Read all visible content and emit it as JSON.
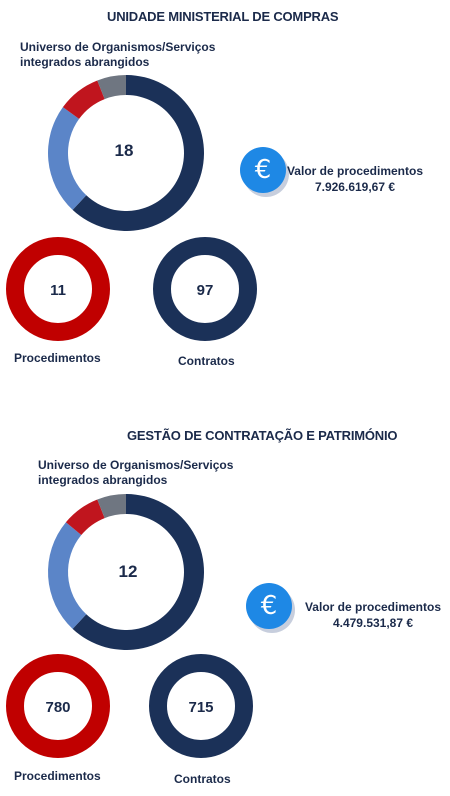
{
  "sections": [
    {
      "title": "UNIDADE MINISTERIAL DE COMPRAS",
      "universe_label_line1": "Universo de Organismos/Serviços",
      "universe_label_line2": "integrados abrangidos",
      "universe_count": "18",
      "euro_symbol": "€",
      "valor_label": "Valor de procedimentos",
      "valor_amount": "7.926.619,67 €",
      "procedimentos_value": "11",
      "procedimentos_label": "Procedimentos",
      "contratos_value": "97",
      "contratos_label": "Contratos"
    },
    {
      "title": "GESTÃO DE CONTRATAÇÃO E PATRIMÓNIO",
      "universe_label_line1": "Universo de Organismos/Serviços",
      "universe_label_line2": "integrados abrangidos",
      "universe_count": "12",
      "euro_symbol": "€",
      "valor_label": "Valor de procedimentos",
      "valor_amount": "4.479.531,87 €",
      "procedimentos_value": "780",
      "procedimentos_label": "Procedimentos",
      "contratos_value": "715",
      "contratos_label": "Contratos"
    }
  ],
  "chart_data": [
    {
      "type": "pie",
      "categories": [
        "dark navy",
        "light blue",
        "red",
        "gray"
      ],
      "values": [
        0.62,
        0.23,
        0.09,
        0.06
      ],
      "colors": [
        "#1b3158",
        "#5b85c8",
        "#c0151e",
        "#6f7681"
      ]
    },
    {
      "type": "pie",
      "categories": [
        "dark navy",
        "light blue",
        "red",
        "gray"
      ],
      "values": [
        0.62,
        0.24,
        0.08,
        0.06
      ],
      "colors": [
        "#1b3158",
        "#5b85c8",
        "#c0151e",
        "#6f7681"
      ]
    }
  ],
  "colors": {
    "procedimentos_ring": "#c00000",
    "contratos_ring": "#1b3158",
    "title": "#1b2a4a",
    "euro_bg": "#1e88e5"
  }
}
